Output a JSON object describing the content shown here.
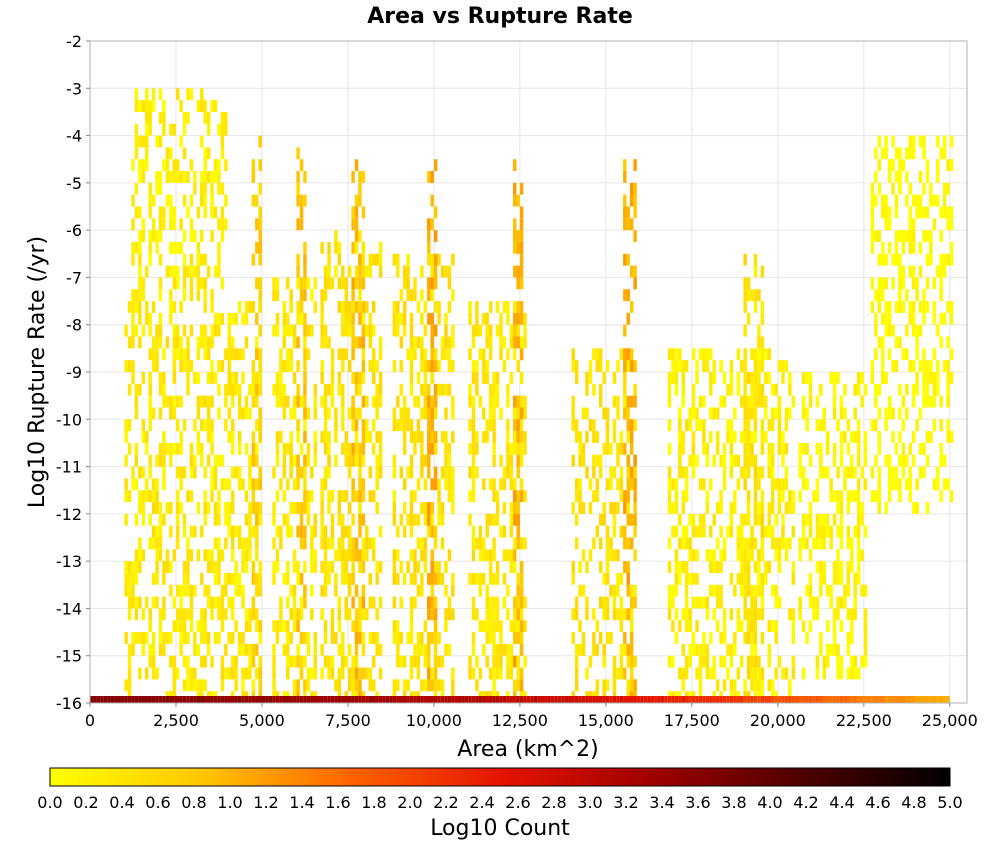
{
  "chart_data": {
    "type": "heatmap",
    "title": "Area vs Rupture Rate",
    "xlabel": "Area (km^2)",
    "ylabel": "Log10 Rupture Rate (/yr)",
    "xlim": [
      0,
      25500
    ],
    "ylim": [
      -16,
      -2
    ],
    "x_ticks": [
      0,
      2500,
      5000,
      7500,
      10000,
      12500,
      15000,
      17500,
      20000,
      22500,
      25000
    ],
    "x_tick_labels": [
      "0",
      "2,500",
      "5,000",
      "7,500",
      "10,000",
      "12,500",
      "15,000",
      "17,500",
      "20,000",
      "22,500",
      "25,000"
    ],
    "y_ticks": [
      -2,
      -3,
      -4,
      -5,
      -6,
      -7,
      -8,
      -9,
      -10,
      -11,
      -12,
      -13,
      -14,
      -15,
      -16
    ],
    "y_tick_labels": [
      "-2",
      "-3",
      "-4",
      "-5",
      "-6",
      "-7",
      "-8",
      "-9",
      "-10",
      "-11",
      "-12",
      "-13",
      "-14",
      "-15",
      "-16"
    ],
    "grid": true,
    "colorbar": {
      "label": "Log10 Count",
      "range": [
        0,
        5
      ],
      "ticks": [
        "0.0",
        "0.2",
        "0.4",
        "0.6",
        "0.8",
        "1.0",
        "1.2",
        "1.4",
        "1.6",
        "1.8",
        "2.0",
        "2.2",
        "2.4",
        "2.6",
        "2.8",
        "3.0",
        "3.2",
        "3.4",
        "3.6",
        "3.8",
        "4.0",
        "4.2",
        "4.4",
        "4.6",
        "4.8",
        "5.0"
      ],
      "colors": [
        "#ffff00",
        "#ffc800",
        "#ff6400",
        "#e61400",
        "#a00000",
        "#500000",
        "#000000"
      ],
      "placement": "bottom"
    },
    "bin_size": {
      "area": 100,
      "log_rate": 0.25
    },
    "clusters": [
      {
        "area_range": [
          1000,
          5000
        ],
        "log_rate_range": [
          -16,
          -7.5
        ],
        "log_count": 0.3
      },
      {
        "area_range": [
          1200,
          4000
        ],
        "log_rate_range": [
          -7.5,
          -3
        ],
        "log_count": 0.2
      },
      {
        "area_range": [
          4700,
          5000
        ],
        "log_rate_range": [
          -16,
          -4
        ],
        "log_count": 0.7
      },
      {
        "area_range": [
          5300,
          6600
        ],
        "log_rate_range": [
          -16,
          -7
        ],
        "log_count": 0.3
      },
      {
        "area_range": [
          6000,
          6300
        ],
        "log_rate_range": [
          -16,
          -4
        ],
        "log_count": 0.8
      },
      {
        "area_range": [
          6700,
          8500
        ],
        "log_rate_range": [
          -16,
          -6
        ],
        "log_count": 0.4
      },
      {
        "area_range": [
          7600,
          8000
        ],
        "log_rate_range": [
          -16,
          -4.5
        ],
        "log_count": 0.9
      },
      {
        "area_range": [
          8800,
          10600
        ],
        "log_rate_range": [
          -16,
          -6.5
        ],
        "log_count": 0.4
      },
      {
        "area_range": [
          9800,
          10100
        ],
        "log_rate_range": [
          -16,
          -4.5
        ],
        "log_count": 1.0
      },
      {
        "area_range": [
          11000,
          12700
        ],
        "log_rate_range": [
          -16,
          -7.5
        ],
        "log_count": 0.35
      },
      {
        "area_range": [
          12300,
          12600
        ],
        "log_rate_range": [
          -16,
          -4.5
        ],
        "log_count": 1.0
      },
      {
        "area_range": [
          14000,
          15900
        ],
        "log_rate_range": [
          -16,
          -8.5
        ],
        "log_count": 0.4
      },
      {
        "area_range": [
          15500,
          15900
        ],
        "log_rate_range": [
          -16,
          -4.5
        ],
        "log_count": 1.0
      },
      {
        "area_range": [
          16800,
          20500
        ],
        "log_rate_range": [
          -16,
          -8.5
        ],
        "log_count": 0.2
      },
      {
        "area_range": [
          19000,
          19600
        ],
        "log_rate_range": [
          -16,
          -6.5
        ],
        "log_count": 0.4
      },
      {
        "area_range": [
          20600,
          22600
        ],
        "log_rate_range": [
          -15.5,
          -9
        ],
        "log_count": 0.1
      },
      {
        "area_range": [
          22700,
          25100
        ],
        "log_rate_range": [
          -12,
          -4
        ],
        "log_count": 0.0
      }
    ],
    "floor_row": {
      "log_rate": -16,
      "area_range": [
        0,
        25000
      ],
      "log_count_start": 3.6,
      "log_count_end": 1.0
    }
  }
}
